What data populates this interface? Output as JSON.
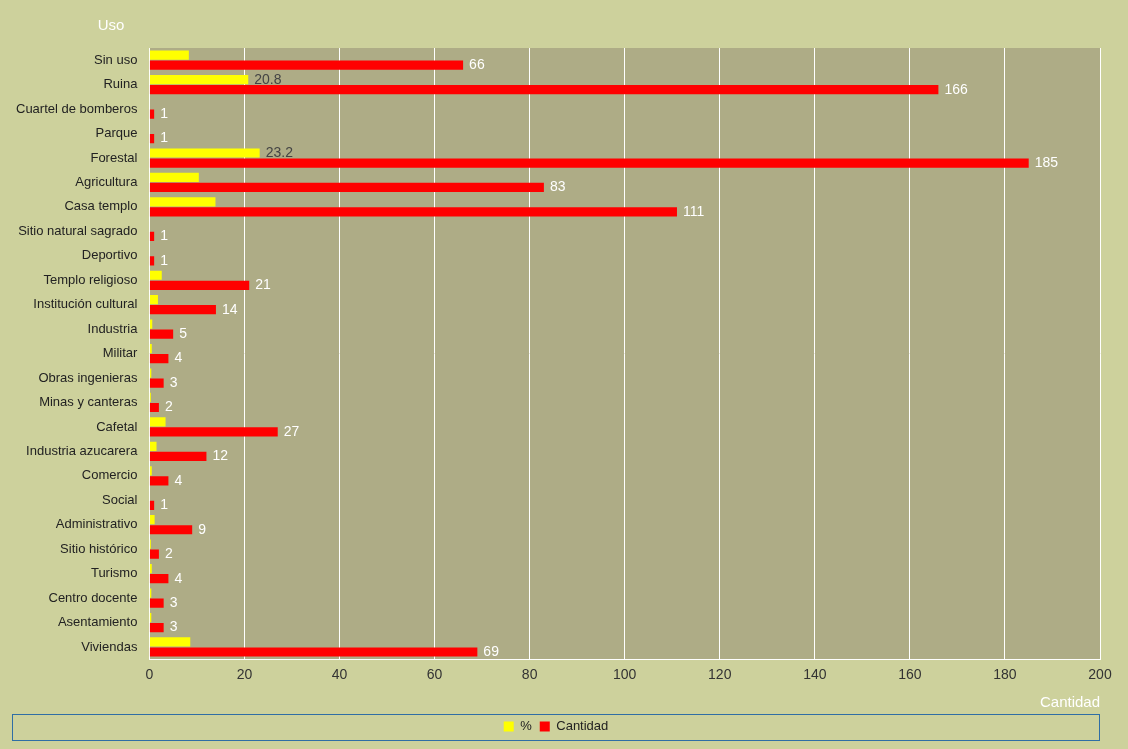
{
  "chart_data": {
    "type": "bar",
    "orientation": "horizontal",
    "x_label": "Cantidad",
    "y_label": "Uso",
    "categories": [
      "Sin uso",
      "Ruina",
      "Cuartel de bomberos",
      "Parque",
      "Forestal",
      "Agricultura",
      "Casa templo",
      "Sitio natural sagrado",
      "Deportivo",
      "Templo religioso",
      "Institución cultural",
      "Industria",
      "Militar",
      "Obras ingenieras",
      "Minas y canteras",
      "Cafetal",
      "Industria azucarera",
      "Comercio",
      "Social",
      "Administrativo",
      "Sitio histórico",
      "Turismo",
      "Centro docente",
      "Asentamiento",
      "Viviendas"
    ],
    "series": [
      {
        "name": "%",
        "color": "#ffff00",
        "values": [
          8.3,
          20.8,
          0.1,
          0.1,
          23.2,
          10.4,
          13.9,
          0.1,
          0.1,
          2.6,
          1.8,
          0.6,
          0.5,
          0.4,
          0.3,
          3.4,
          1.5,
          0.5,
          0.1,
          1.1,
          0.3,
          0.5,
          0.4,
          0.4,
          8.6
        ],
        "value_labels": [
          null,
          "20.8",
          null,
          null,
          "23.2",
          null,
          null,
          null,
          null,
          null,
          null,
          null,
          null,
          null,
          null,
          null,
          null,
          null,
          null,
          null,
          null,
          null,
          null,
          null,
          null
        ]
      },
      {
        "name": "Cantidad",
        "color": "#ff0000",
        "values": [
          66,
          166,
          1,
          1,
          185,
          83,
          111,
          1,
          1,
          21,
          14,
          5,
          4,
          3,
          2,
          27,
          12,
          4,
          1,
          9,
          2,
          4,
          3,
          3,
          69
        ]
      }
    ],
    "xlim": [
      0,
      200
    ],
    "xticks": [
      0,
      20,
      40,
      60,
      80,
      100,
      120,
      140,
      160,
      180,
      200
    ],
    "grid": true,
    "legend": "bottom",
    "data_labels": true
  }
}
